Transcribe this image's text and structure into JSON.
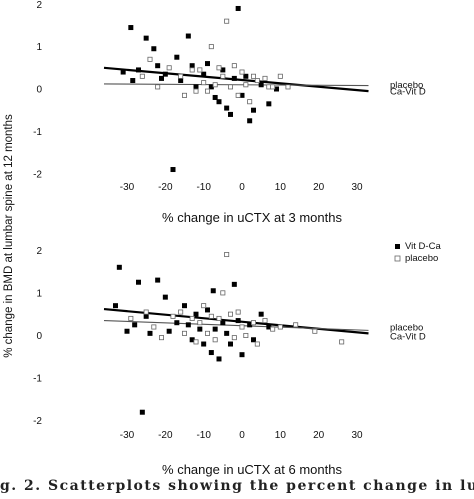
{
  "caption": "g. 2. Scatterplots showing the percent change in lumbar spi",
  "ylabel": "% change in BMD at lumbar spine at 12 months",
  "chart_data": [
    {
      "type": "scatter",
      "title": "",
      "xlabel": "% change in uCTX at 3 months",
      "ylabel": "% change in BMD at lumbar spine at 12 months",
      "xlim": [
        -36,
        36
      ],
      "ylim": [
        -2.1,
        2.1
      ],
      "xticks": [
        -30,
        -20,
        -10,
        0,
        10,
        20,
        30
      ],
      "yticks": [
        -2,
        -1,
        0,
        1,
        2
      ],
      "legend": [],
      "series": [
        {
          "name": "",
          "marker": "filled-square",
          "points": [
            {
              "x": -31,
              "y": 0.4
            },
            {
              "x": -29,
              "y": 1.45
            },
            {
              "x": -28.5,
              "y": 0.2
            },
            {
              "x": -27,
              "y": 0.45
            },
            {
              "x": -25,
              "y": 1.2
            },
            {
              "x": -23,
              "y": 0.95
            },
            {
              "x": -22,
              "y": 0.55
            },
            {
              "x": -21,
              "y": 0.25
            },
            {
              "x": -20,
              "y": 0.35
            },
            {
              "x": -18,
              "y": -1.9
            },
            {
              "x": -17,
              "y": 0.75
            },
            {
              "x": -16,
              "y": 0.2
            },
            {
              "x": -14,
              "y": 1.25
            },
            {
              "x": -13,
              "y": 0.55
            },
            {
              "x": -12,
              "y": 0.05
            },
            {
              "x": -10,
              "y": 0.35
            },
            {
              "x": -9,
              "y": 0.6
            },
            {
              "x": -8,
              "y": 0.05
            },
            {
              "x": -7,
              "y": -0.2
            },
            {
              "x": -6,
              "y": -0.3
            },
            {
              "x": -5,
              "y": 0.45
            },
            {
              "x": -4,
              "y": -0.45
            },
            {
              "x": -3,
              "y": -0.6
            },
            {
              "x": -2,
              "y": 0.25
            },
            {
              "x": -1,
              "y": 1.9
            },
            {
              "x": 0,
              "y": -0.15
            },
            {
              "x": 1,
              "y": 0.3
            },
            {
              "x": 2,
              "y": -0.75
            },
            {
              "x": 3,
              "y": -0.5
            },
            {
              "x": 5,
              "y": 0.1
            },
            {
              "x": 7,
              "y": -0.35
            },
            {
              "x": 9,
              "y": 0.0
            }
          ]
        },
        {
          "name": "",
          "marker": "open-square",
          "points": [
            {
              "x": -26,
              "y": 0.3
            },
            {
              "x": -24,
              "y": 0.7
            },
            {
              "x": -22,
              "y": 0.05
            },
            {
              "x": -19,
              "y": 0.5
            },
            {
              "x": -16,
              "y": 0.3
            },
            {
              "x": -15,
              "y": -0.15
            },
            {
              "x": -13,
              "y": 0.45
            },
            {
              "x": -12,
              "y": -0.05
            },
            {
              "x": -11,
              "y": 0.45
            },
            {
              "x": -10,
              "y": 0.15
            },
            {
              "x": -9,
              "y": -0.05
            },
            {
              "x": -8,
              "y": 1.0
            },
            {
              "x": -7,
              "y": 0.1
            },
            {
              "x": -6,
              "y": 0.5
            },
            {
              "x": -5,
              "y": 0.3
            },
            {
              "x": -4,
              "y": 1.6
            },
            {
              "x": -3,
              "y": 0.05
            },
            {
              "x": -2,
              "y": 0.55
            },
            {
              "x": -1,
              "y": -0.15
            },
            {
              "x": 0,
              "y": 0.4
            },
            {
              "x": 1,
              "y": 0.1
            },
            {
              "x": 2,
              "y": -0.3
            },
            {
              "x": 3,
              "y": 0.3
            },
            {
              "x": 4,
              "y": 0.2
            },
            {
              "x": 6,
              "y": 0.25
            },
            {
              "x": 7,
              "y": 0.05
            },
            {
              "x": 8,
              "y": 0.05
            },
            {
              "x": 10,
              "y": 0.3
            },
            {
              "x": 12,
              "y": 0.05
            }
          ]
        }
      ],
      "regression_lines": [
        {
          "label": "placebo",
          "style": "thick",
          "x": [
            -36,
            33
          ],
          "y": [
            0.5,
            -0.05
          ]
        },
        {
          "label": "Ca-Vit D",
          "style": "thin",
          "x": [
            -36,
            33
          ],
          "y": [
            0.12,
            0.08
          ]
        }
      ]
    },
    {
      "type": "scatter",
      "title": "",
      "xlabel": "% change in uCTX at 6 months",
      "ylabel": "% change in BMD at lumbar spine at 12 months",
      "xlim": [
        -36,
        36
      ],
      "ylim": [
        -2.1,
        2.1
      ],
      "xticks": [
        -30,
        -20,
        -10,
        0,
        10,
        20,
        30
      ],
      "yticks": [
        -2,
        -1,
        0,
        1,
        2
      ],
      "legend": [
        {
          "label": "Vit D-Ca",
          "marker": "filled-square"
        },
        {
          "label": "placebo",
          "marker": "open-square"
        }
      ],
      "legend_position": "top-right",
      "series": [
        {
          "name": "Vit D-Ca",
          "marker": "filled-square",
          "points": [
            {
              "x": -33,
              "y": 0.7
            },
            {
              "x": -32,
              "y": 1.6
            },
            {
              "x": -30,
              "y": 0.1
            },
            {
              "x": -28,
              "y": 0.25
            },
            {
              "x": -27,
              "y": 1.25
            },
            {
              "x": -26,
              "y": -1.8
            },
            {
              "x": -25,
              "y": 0.45
            },
            {
              "x": -22,
              "y": 1.3
            },
            {
              "x": -20,
              "y": 0.9
            },
            {
              "x": -19,
              "y": 0.1
            },
            {
              "x": -17,
              "y": 0.3
            },
            {
              "x": -15,
              "y": 0.7
            },
            {
              "x": -14,
              "y": 0.25
            },
            {
              "x": -13,
              "y": -0.1
            },
            {
              "x": -12,
              "y": 0.5
            },
            {
              "x": -11,
              "y": 0.15
            },
            {
              "x": -10,
              "y": -0.2
            },
            {
              "x": -9,
              "y": 0.6
            },
            {
              "x": -8,
              "y": -0.4
            },
            {
              "x": -7,
              "y": 0.15
            },
            {
              "x": -6,
              "y": -0.55
            },
            {
              "x": -5,
              "y": 0.3
            },
            {
              "x": -4,
              "y": 0.05
            },
            {
              "x": -3,
              "y": -0.2
            },
            {
              "x": -2,
              "y": 1.2
            },
            {
              "x": -1,
              "y": 0.35
            },
            {
              "x": 0,
              "y": -0.45
            },
            {
              "x": 2,
              "y": 0.25
            },
            {
              "x": 3,
              "y": -0.1
            },
            {
              "x": 5,
              "y": 0.5
            },
            {
              "x": 7,
              "y": 0.2
            },
            {
              "x": -24,
              "y": 0.05
            },
            {
              "x": -7.5,
              "y": 1.05
            }
          ]
        },
        {
          "name": "placebo",
          "marker": "open-square",
          "points": [
            {
              "x": -29,
              "y": 0.4
            },
            {
              "x": -25,
              "y": 0.55
            },
            {
              "x": -23,
              "y": 0.2
            },
            {
              "x": -21,
              "y": -0.05
            },
            {
              "x": -18,
              "y": 0.45
            },
            {
              "x": -16,
              "y": 0.55
            },
            {
              "x": -15,
              "y": 0.05
            },
            {
              "x": -13,
              "y": 0.4
            },
            {
              "x": -12,
              "y": -0.15
            },
            {
              "x": -11,
              "y": 0.3
            },
            {
              "x": -10,
              "y": 0.7
            },
            {
              "x": -9,
              "y": 0.05
            },
            {
              "x": -8,
              "y": 0.45
            },
            {
              "x": -7,
              "y": -0.1
            },
            {
              "x": -6,
              "y": 0.4
            },
            {
              "x": -5,
              "y": 1.0
            },
            {
              "x": -4,
              "y": 1.9
            },
            {
              "x": -3,
              "y": 0.5
            },
            {
              "x": -2,
              "y": -0.05
            },
            {
              "x": -1,
              "y": 0.55
            },
            {
              "x": 0,
              "y": 0.2
            },
            {
              "x": 1,
              "y": 0.0
            },
            {
              "x": 3,
              "y": 0.3
            },
            {
              "x": 4,
              "y": -0.2
            },
            {
              "x": 6,
              "y": 0.35
            },
            {
              "x": 8,
              "y": 0.15
            },
            {
              "x": 10,
              "y": 0.2
            },
            {
              "x": 14,
              "y": 0.25
            },
            {
              "x": 19,
              "y": 0.1
            },
            {
              "x": 26,
              "y": -0.15
            }
          ]
        }
      ],
      "regression_lines": [
        {
          "label": "placebo",
          "style": "thick",
          "x": [
            -36,
            33
          ],
          "y": [
            0.62,
            0.05
          ]
        },
        {
          "label": "Ca-Vit D",
          "style": "thin",
          "x": [
            -36,
            33
          ],
          "y": [
            0.35,
            0.12
          ]
        }
      ]
    }
  ]
}
